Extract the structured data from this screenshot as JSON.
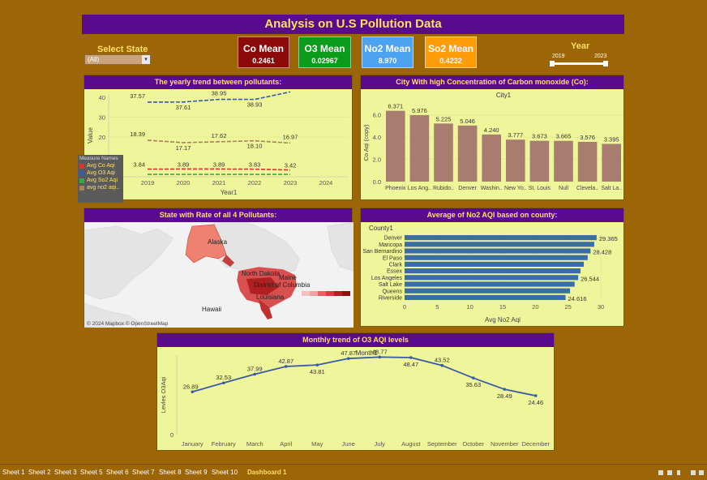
{
  "dashboard": {
    "title": "Analysis on U.S Pollution Data",
    "filter": {
      "label": "Select State",
      "value": "(All)"
    },
    "kpis": [
      {
        "label": "Co Mean",
        "value": "0.2461",
        "color": "#8c0a0a"
      },
      {
        "label": "O3 Mean",
        "value": "0.02967",
        "color": "#0a9c1a"
      },
      {
        "label": "No2 Mean",
        "value": "8.970",
        "color": "#4ea3f0"
      },
      {
        "label": "So2 Mean",
        "value": "0.4232",
        "color": "#ff9c0a"
      }
    ],
    "year_slider": {
      "label": "Year",
      "min": "2019",
      "max": "2023"
    }
  },
  "panels": {
    "yearly": {
      "title": "The yearly trend between pollutants:",
      "xlabel": "Year1",
      "ylabel": "Value"
    },
    "city": {
      "title": "City With high Concentration of Carbon monoxide (Co):",
      "subtitle": "City1",
      "ylabel": "Co Aqi (copy)"
    },
    "map": {
      "title": "State with Rate of all 4 Pollutants:",
      "credit": "© 2024 Mapbox © OpenStreetMap",
      "labels": [
        "Alaska",
        "North Dakota",
        "Maine",
        "District of Columbia",
        "Louisiana",
        "Hawaii"
      ]
    },
    "county": {
      "title": "Average of No2 AQI based on county:",
      "header": "County1",
      "xlabel": "Avg No2 Aqi"
    },
    "monthly": {
      "title": "Monthly trend of O3 AQI levels",
      "subtitle": "Month1",
      "ylabel": "Levles O3Aqi"
    }
  },
  "legend": {
    "title": "Measure Names",
    "items": [
      {
        "label": "Avg Co Aqi",
        "color": "#e03030"
      },
      {
        "label": "Avg O3 Aqi",
        "color": "#3a5aa8"
      },
      {
        "label": "Avg So2 Aqi",
        "color": "#3aa84a"
      },
      {
        "label": "avg no2 aqi..",
        "color": "#a88060"
      }
    ]
  },
  "chart_data": [
    {
      "type": "line",
      "title": "The yearly trend between pollutants:",
      "x": [
        2019,
        2020,
        2021,
        2022,
        2023
      ],
      "xlim": [
        2019,
        2024
      ],
      "ylim": [
        0,
        40
      ],
      "yticks": [
        20,
        30,
        40
      ],
      "xlabel": "Year1",
      "ylabel": "Value",
      "series": [
        {
          "name": "Avg O3 Aqi",
          "values": [
            37.57,
            37.61,
            38.95,
            38.93,
            42.72
          ],
          "color": "#3a5aa8"
        },
        {
          "name": "avg no2 aqi..",
          "values": [
            18.39,
            17.17,
            17.62,
            18.1,
            16.97
          ],
          "color": "#a88060"
        },
        {
          "name": "Avg Co Aqi",
          "values": [
            3.84,
            3.89,
            3.89,
            3.83,
            3.42
          ],
          "color": "#e03030"
        },
        {
          "name": "Avg So2 Aqi",
          "values": [
            1.2,
            1.2,
            1.2,
            1.2,
            1.2
          ],
          "color": "#3aa84a"
        }
      ],
      "labels": {
        "Avg O3 Aqi": [
          "37.57",
          "37.61",
          "38.95",
          "38.93",
          "42.72"
        ],
        "avg no2 aqi..": [
          "18.39",
          "17.17",
          "17.62",
          "18.10",
          "16.97"
        ],
        "Avg Co Aqi": [
          "3.84",
          "3.89",
          "3.89",
          "3.83",
          "3.42"
        ]
      }
    },
    {
      "type": "bar",
      "title": "City With high Concentration of Carbon monoxide (Co):",
      "categories": [
        "Phoenix",
        "Los Ang..",
        "Rubido..",
        "Denver",
        "Washin..",
        "New Yo..",
        "St. Louis",
        "Null",
        "Clevela..",
        "Salt La.."
      ],
      "values": [
        6.371,
        5.976,
        5.225,
        5.046,
        4.24,
        3.777,
        3.673,
        3.665,
        3.576,
        3.395
      ],
      "labels": [
        "6.371",
        "5.976",
        "5.225",
        "5.046",
        "4.240",
        "3.777",
        "3.673",
        "3.665",
        "3.576",
        "3.395"
      ],
      "ylim": [
        0,
        7
      ],
      "yticks": [
        0.0,
        2.0,
        4.0,
        6.0
      ],
      "ylabel": "Co Aqi (copy)",
      "color": "#a87c6e"
    },
    {
      "type": "bar",
      "title": "Average of No2 AQI based on county:",
      "categories": [
        "Denver",
        "Maricopa",
        "San Bernardino",
        "El Paso",
        "Clark",
        "Essex",
        "Los Angeles",
        "Salt Lake",
        "Queens",
        "Riverside"
      ],
      "values": [
        29.365,
        29.0,
        28.428,
        28.0,
        27.4,
        26.9,
        26.544,
        26.0,
        25.3,
        24.616
      ],
      "labels": [
        "29.365",
        "",
        "28.428",
        "",
        "",
        "",
        "26.544",
        "",
        "",
        "24.616"
      ],
      "xlim": [
        0,
        30
      ],
      "xticks": [
        0,
        5,
        10,
        15,
        20,
        25,
        30
      ],
      "xlabel": "Avg No2 Aqi",
      "color": "#3a6ea8"
    },
    {
      "type": "line",
      "title": "Monthly trend of O3 AQI levels",
      "categories": [
        "January",
        "February",
        "March",
        "April",
        "May",
        "June",
        "July",
        "August",
        "September",
        "October",
        "November",
        "December"
      ],
      "values": [
        26.89,
        32.53,
        37.99,
        42.87,
        43.81,
        47.87,
        48.77,
        48.47,
        43.52,
        35.63,
        28.49,
        24.46
      ],
      "labels": [
        "26.89",
        "32.53",
        "37.99",
        "42.87",
        "43.81",
        "47.87",
        "48.77",
        "48.47",
        "43.52",
        "35.63",
        "28.49",
        "24.46"
      ],
      "ylim": [
        0,
        50
      ],
      "yticks": [
        0
      ],
      "ylabel": "Levles O3Aqi",
      "color": "#3a5aa8"
    }
  ],
  "tabs": [
    "Sheet 1",
    "Sheet 2",
    "Sheet 3",
    "Sheet 5",
    "Sheet 6",
    "Sheet 7",
    "Sheet 8",
    "Sheet 9",
    "Sheet 10",
    "Dashboard 1"
  ],
  "active_tab": "Dashboard 1"
}
